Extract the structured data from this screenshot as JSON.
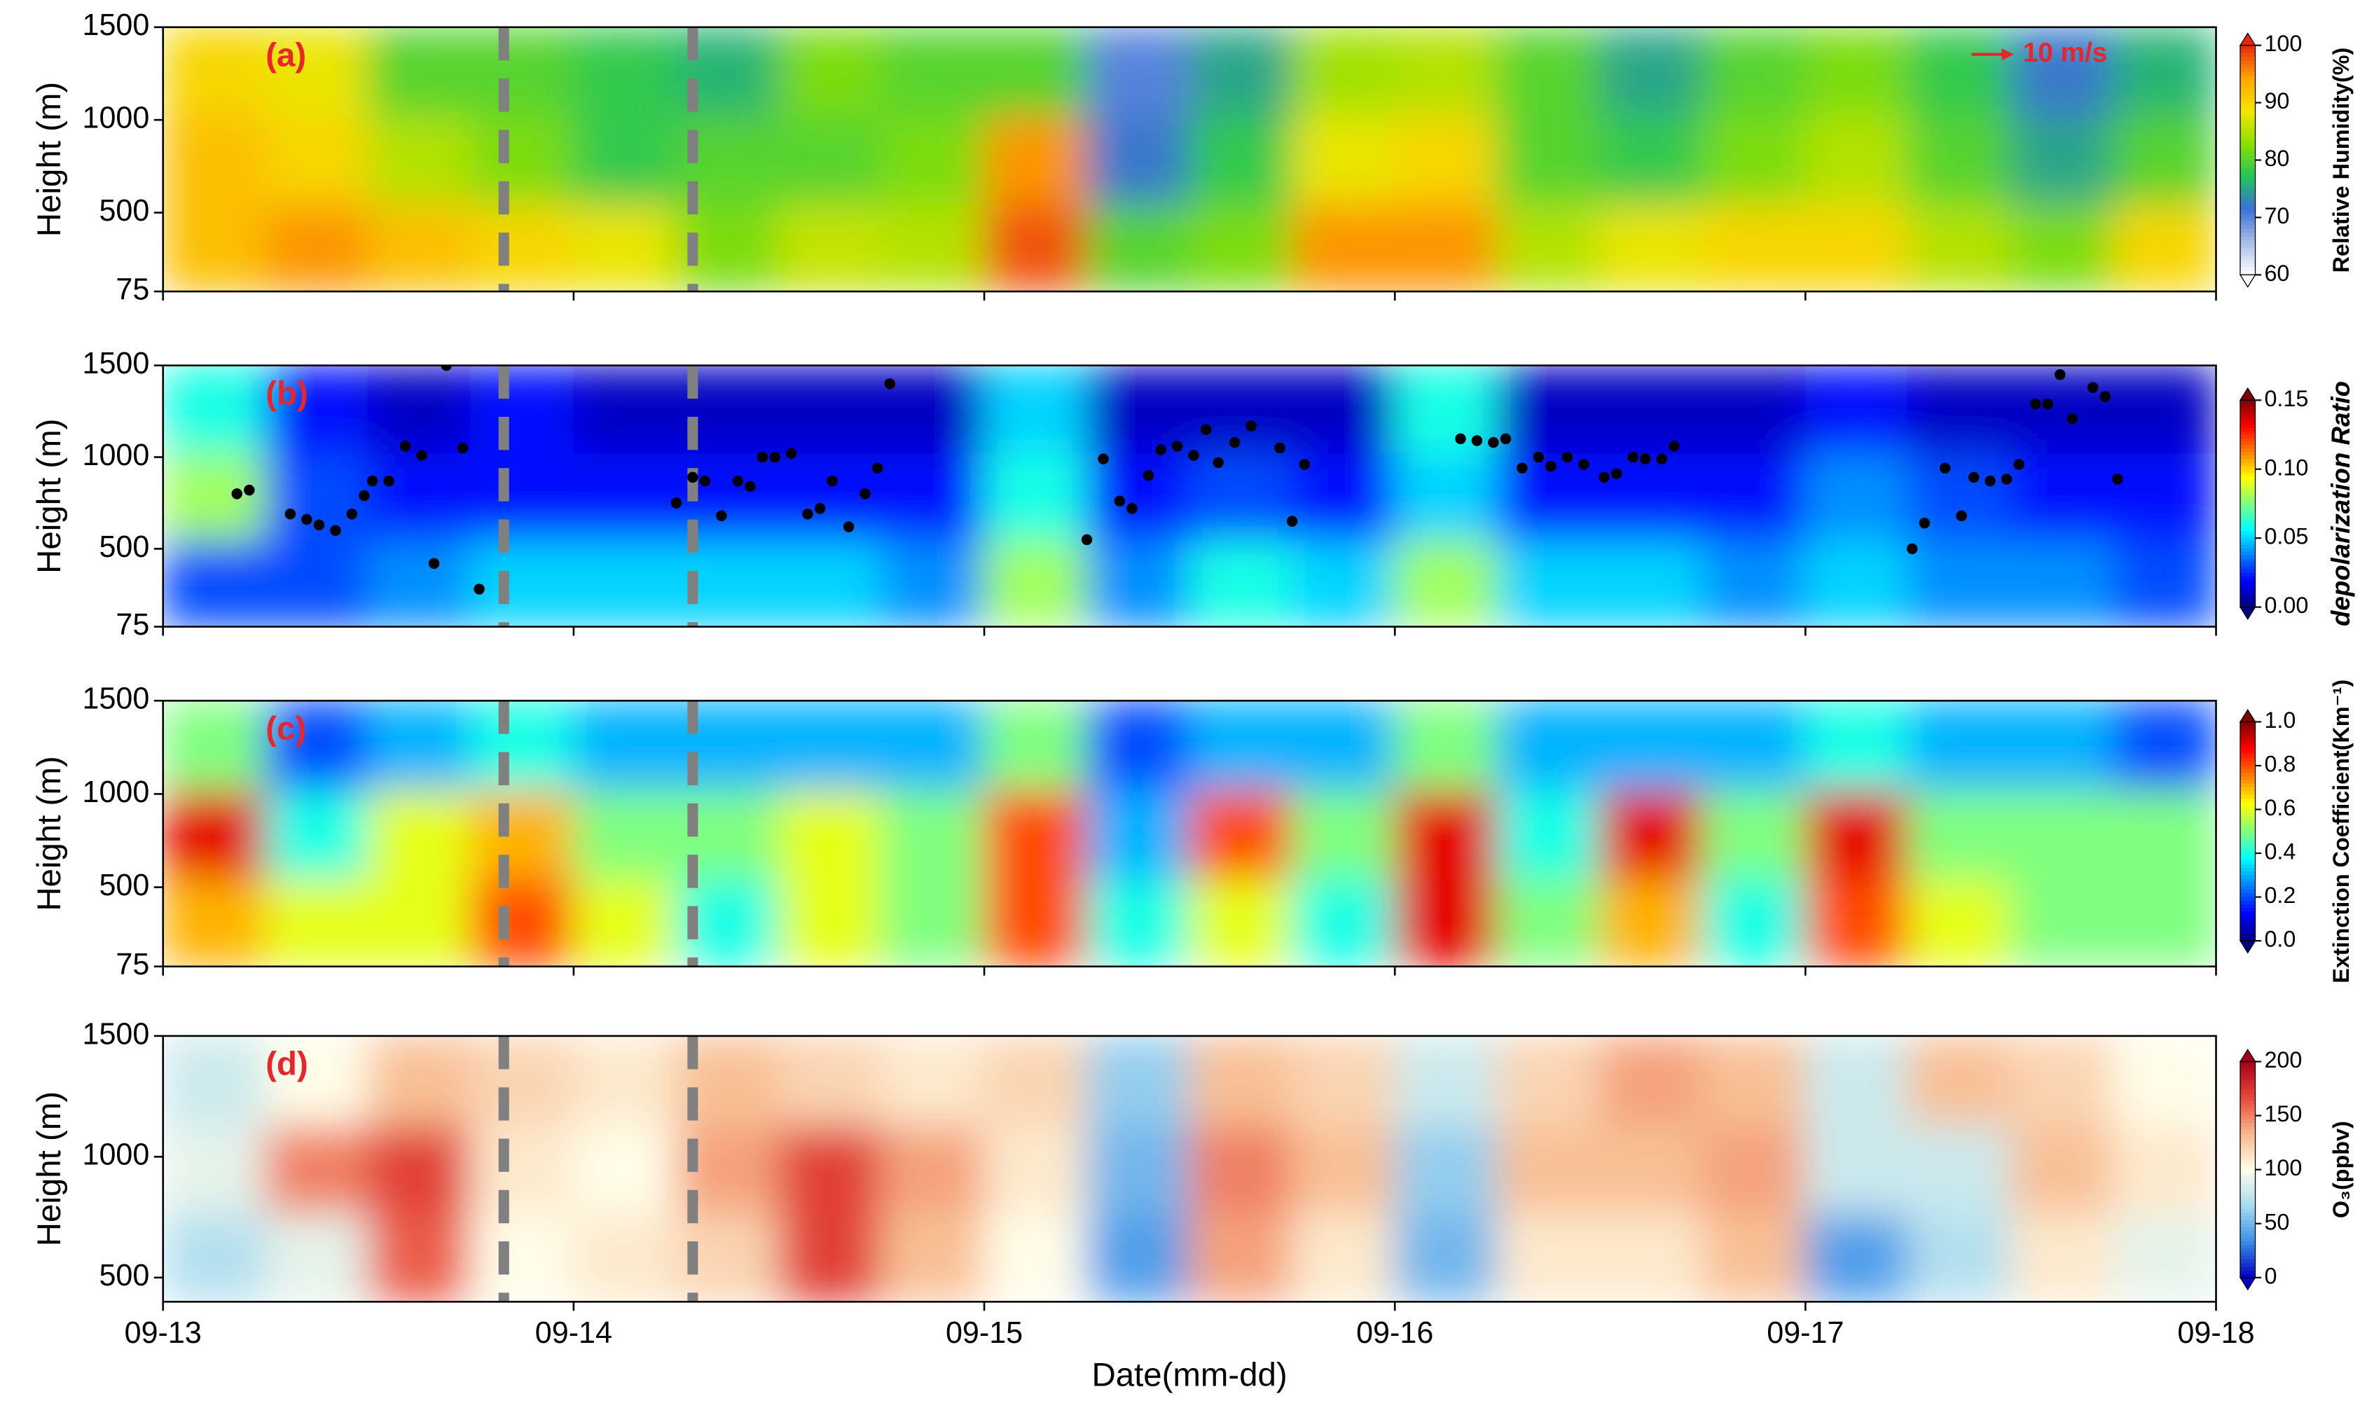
{
  "xaxis": {
    "label": "Date(mm-dd)",
    "xlim": [
      0,
      5
    ],
    "xticks": [
      {
        "value": 0,
        "label": "09-13"
      },
      {
        "value": 1,
        "label": "09-14"
      },
      {
        "value": 2,
        "label": "09-15"
      },
      {
        "value": 3,
        "label": "09-16"
      },
      {
        "value": 4,
        "label": "09-17"
      },
      {
        "value": 5,
        "label": "09-18"
      }
    ]
  },
  "dashed_lines_x": [
    0.83,
    1.29
  ],
  "chart_data": [
    {
      "type": "heatmap",
      "panel_label": "(a)",
      "ylabel": "Height (m)",
      "ylim": [
        75,
        1500
      ],
      "yticks": [
        75,
        500,
        1000,
        1500
      ],
      "wind_reference": "10 m/s",
      "wind_reference_color": "#e8262a",
      "xbins": [
        0,
        0.25,
        0.5,
        0.75,
        1,
        1.25,
        1.5,
        1.75,
        2,
        2.25,
        2.5,
        2.75,
        3,
        3.25,
        3.5,
        3.75,
        4,
        4.25,
        4.5,
        4.75,
        5
      ],
      "ybins": [
        75,
        550,
        1025,
        1500
      ],
      "z": [
        [
          92,
          95,
          92,
          90,
          88,
          82,
          86,
          85,
          98,
          80,
          82,
          95,
          95,
          85,
          88,
          90,
          90,
          85,
          82,
          90
        ],
        [
          92,
          90,
          85,
          82,
          78,
          80,
          80,
          82,
          95,
          72,
          78,
          88,
          90,
          80,
          78,
          82,
          85,
          80,
          75,
          80
        ],
        [
          90,
          88,
          80,
          80,
          78,
          76,
          82,
          80,
          80,
          70,
          75,
          84,
          85,
          80,
          75,
          80,
          82,
          78,
          72,
          76
        ]
      ],
      "colorbar_label": "Relative Humidity(%)",
      "clim": [
        60,
        100
      ],
      "cticks": [
        60,
        70,
        80,
        90,
        100
      ],
      "colormap": [
        "#ffffff",
        "#a8bbe8",
        "#3a6fd8",
        "#22c55a",
        "#8ce000",
        "#f4e600",
        "#ffa500",
        "#e8260f"
      ]
    },
    {
      "type": "heatmap",
      "panel_label": "(b)",
      "ylabel": "Height (m)",
      "ylim": [
        75,
        1500
      ],
      "yticks": [
        75,
        500,
        1000,
        1500
      ],
      "xbins": [
        0,
        0.25,
        0.5,
        0.75,
        1,
        1.25,
        1.5,
        1.75,
        2,
        2.25,
        2.5,
        2.75,
        3,
        3.25,
        3.5,
        3.75,
        4,
        4.25,
        4.5,
        4.75,
        5
      ],
      "ybins": [
        75,
        550,
        1025,
        1500
      ],
      "z": [
        [
          0.03,
          0.03,
          0.04,
          0.05,
          0.05,
          0.05,
          0.05,
          0.04,
          0.08,
          0.04,
          0.06,
          0.05,
          0.08,
          0.05,
          0.05,
          0.04,
          0.05,
          0.04,
          0.04,
          0.03
        ],
        [
          0.08,
          0.03,
          0.02,
          0.02,
          0.02,
          0.02,
          0.02,
          0.02,
          0.06,
          0.02,
          0.03,
          0.02,
          0.05,
          0.02,
          0.02,
          0.02,
          0.04,
          0.03,
          0.02,
          0.02
        ],
        [
          0.06,
          0.02,
          0.01,
          0.02,
          0.01,
          0.01,
          0.01,
          0.01,
          0.05,
          0.01,
          0.01,
          0.01,
          0.06,
          0.01,
          0.01,
          0.01,
          0.02,
          0.01,
          0.01,
          0.01
        ]
      ],
      "scatter": {
        "color": "#000000",
        "x": [
          0.18,
          0.21,
          0.31,
          0.35,
          0.38,
          0.42,
          0.46,
          0.49,
          0.51,
          0.55,
          0.59,
          0.63,
          0.66,
          0.69,
          0.73,
          0.77,
          1.25,
          1.29,
          1.32,
          1.36,
          1.4,
          1.43,
          1.46,
          1.49,
          1.53,
          1.57,
          1.6,
          1.63,
          1.67,
          1.71,
          1.74,
          1.77,
          2.25,
          2.29,
          2.33,
          2.36,
          2.4,
          2.43,
          2.47,
          2.51,
          2.54,
          2.57,
          2.61,
          2.65,
          2.72,
          2.75,
          2.78,
          3.16,
          3.2,
          3.24,
          3.27,
          3.31,
          3.35,
          3.38,
          3.42,
          3.46,
          3.51,
          3.54,
          3.58,
          3.61,
          3.65,
          3.68,
          4.26,
          4.29,
          4.34,
          4.38,
          4.41,
          4.45,
          4.49,
          4.52,
          4.56,
          4.59,
          4.62,
          4.65,
          4.7,
          4.73,
          4.76
        ],
        "y": [
          800,
          820,
          690,
          660,
          630,
          600,
          690,
          790,
          870,
          870,
          1060,
          1010,
          420,
          1500,
          1050,
          280,
          750,
          890,
          870,
          680,
          870,
          840,
          1000,
          1000,
          1020,
          690,
          720,
          870,
          620,
          800,
          940,
          1400,
          550,
          990,
          760,
          720,
          900,
          1040,
          1060,
          1010,
          1150,
          970,
          1080,
          1170,
          1050,
          650,
          960,
          1100,
          1090,
          1080,
          1100,
          940,
          1000,
          950,
          1000,
          960,
          890,
          910,
          1000,
          990,
          990,
          1060,
          500,
          640,
          940,
          680,
          890,
          870,
          880,
          960,
          1290,
          1290,
          1450,
          1210,
          1380,
          1330,
          880
        ]
      },
      "colorbar_label": "depolarization Ratio",
      "clim": [
        0,
        0.15
      ],
      "cticks": [
        {
          "value": 0,
          "label": "0.00"
        },
        {
          "value": 0.05,
          "label": "0.05"
        },
        {
          "value": 0.1,
          "label": "0.10"
        },
        {
          "value": 0.15,
          "label": "0.15"
        }
      ],
      "colormap": [
        "#00007f",
        "#0000ff",
        "#007fff",
        "#00ffff",
        "#7fff7f",
        "#ffff00",
        "#ff7f00",
        "#ff0000",
        "#7f0000"
      ]
    },
    {
      "type": "heatmap",
      "panel_label": "(c)",
      "ylabel": "Height (m)",
      "ylim": [
        75,
        1500
      ],
      "yticks": [
        75,
        500,
        1000,
        1500
      ],
      "xbins": [
        0,
        0.25,
        0.5,
        0.75,
        1,
        1.25,
        1.5,
        1.75,
        2,
        2.25,
        2.5,
        2.75,
        3,
        3.25,
        3.5,
        3.75,
        4,
        4.25,
        4.5,
        4.75,
        5
      ],
      "ybins": [
        75,
        550,
        1025,
        1500
      ],
      "z": [
        [
          0.7,
          0.6,
          0.6,
          0.8,
          0.6,
          0.4,
          0.6,
          0.5,
          0.8,
          0.4,
          0.6,
          0.4,
          0.9,
          0.5,
          0.7,
          0.4,
          0.8,
          0.6,
          0.5,
          0.5
        ],
        [
          0.9,
          0.4,
          0.6,
          0.7,
          0.5,
          0.5,
          0.6,
          0.5,
          0.8,
          0.3,
          0.8,
          0.5,
          0.9,
          0.4,
          0.9,
          0.5,
          0.9,
          0.5,
          0.5,
          0.5
        ],
        [
          0.5,
          0.2,
          0.3,
          0.4,
          0.3,
          0.3,
          0.3,
          0.3,
          0.5,
          0.2,
          0.3,
          0.3,
          0.5,
          0.3,
          0.3,
          0.3,
          0.4,
          0.3,
          0.3,
          0.2
        ]
      ],
      "colorbar_label": "Extinction Coefficient(Km⁻¹)",
      "clim": [
        0,
        1
      ],
      "cticks": [
        {
          "value": 0,
          "label": "0.0"
        },
        0.2,
        0.4,
        0.6,
        0.8,
        {
          "value": 1,
          "label": "1.0"
        }
      ],
      "colormap": [
        "#00007f",
        "#0000ff",
        "#007fff",
        "#00ffff",
        "#7fff7f",
        "#ffff00",
        "#ff7f00",
        "#ff0000",
        "#7f0000"
      ]
    },
    {
      "type": "heatmap",
      "panel_label": "(d)",
      "ylabel": "Height (m)",
      "ylim": [
        400,
        1500
      ],
      "yticks": [
        500,
        1000,
        1500
      ],
      "xbins": [
        0,
        0.25,
        0.5,
        0.75,
        1,
        1.25,
        1.5,
        1.75,
        2,
        2.25,
        2.5,
        2.75,
        3,
        3.25,
        3.5,
        3.75,
        4,
        4.25,
        4.5,
        4.75,
        5
      ],
      "ybins": [
        400,
        767,
        1133,
        1500
      ],
      "z": [
        [
          70,
          90,
          160,
          100,
          110,
          120,
          170,
          130,
          100,
          40,
          140,
          110,
          50,
          110,
          110,
          130,
          40,
          70,
          110,
          90
        ],
        [
          90,
          150,
          170,
          110,
          100,
          140,
          170,
          140,
          110,
          50,
          150,
          130,
          60,
          130,
          130,
          140,
          80,
          80,
          130,
          110
        ],
        [
          80,
          100,
          130,
          120,
          110,
          130,
          120,
          110,
          120,
          60,
          130,
          120,
          80,
          120,
          140,
          130,
          80,
          130,
          120,
          100
        ]
      ],
      "colorbar_label": "O₃(ppbv)",
      "clim": [
        0,
        200
      ],
      "cticks": [
        0,
        50,
        100,
        150,
        200
      ],
      "colormap": [
        "#0000c0",
        "#3a8fe8",
        "#a9dcf0",
        "#fffde8",
        "#f7b98c",
        "#e8463a",
        "#a50018"
      ]
    }
  ]
}
